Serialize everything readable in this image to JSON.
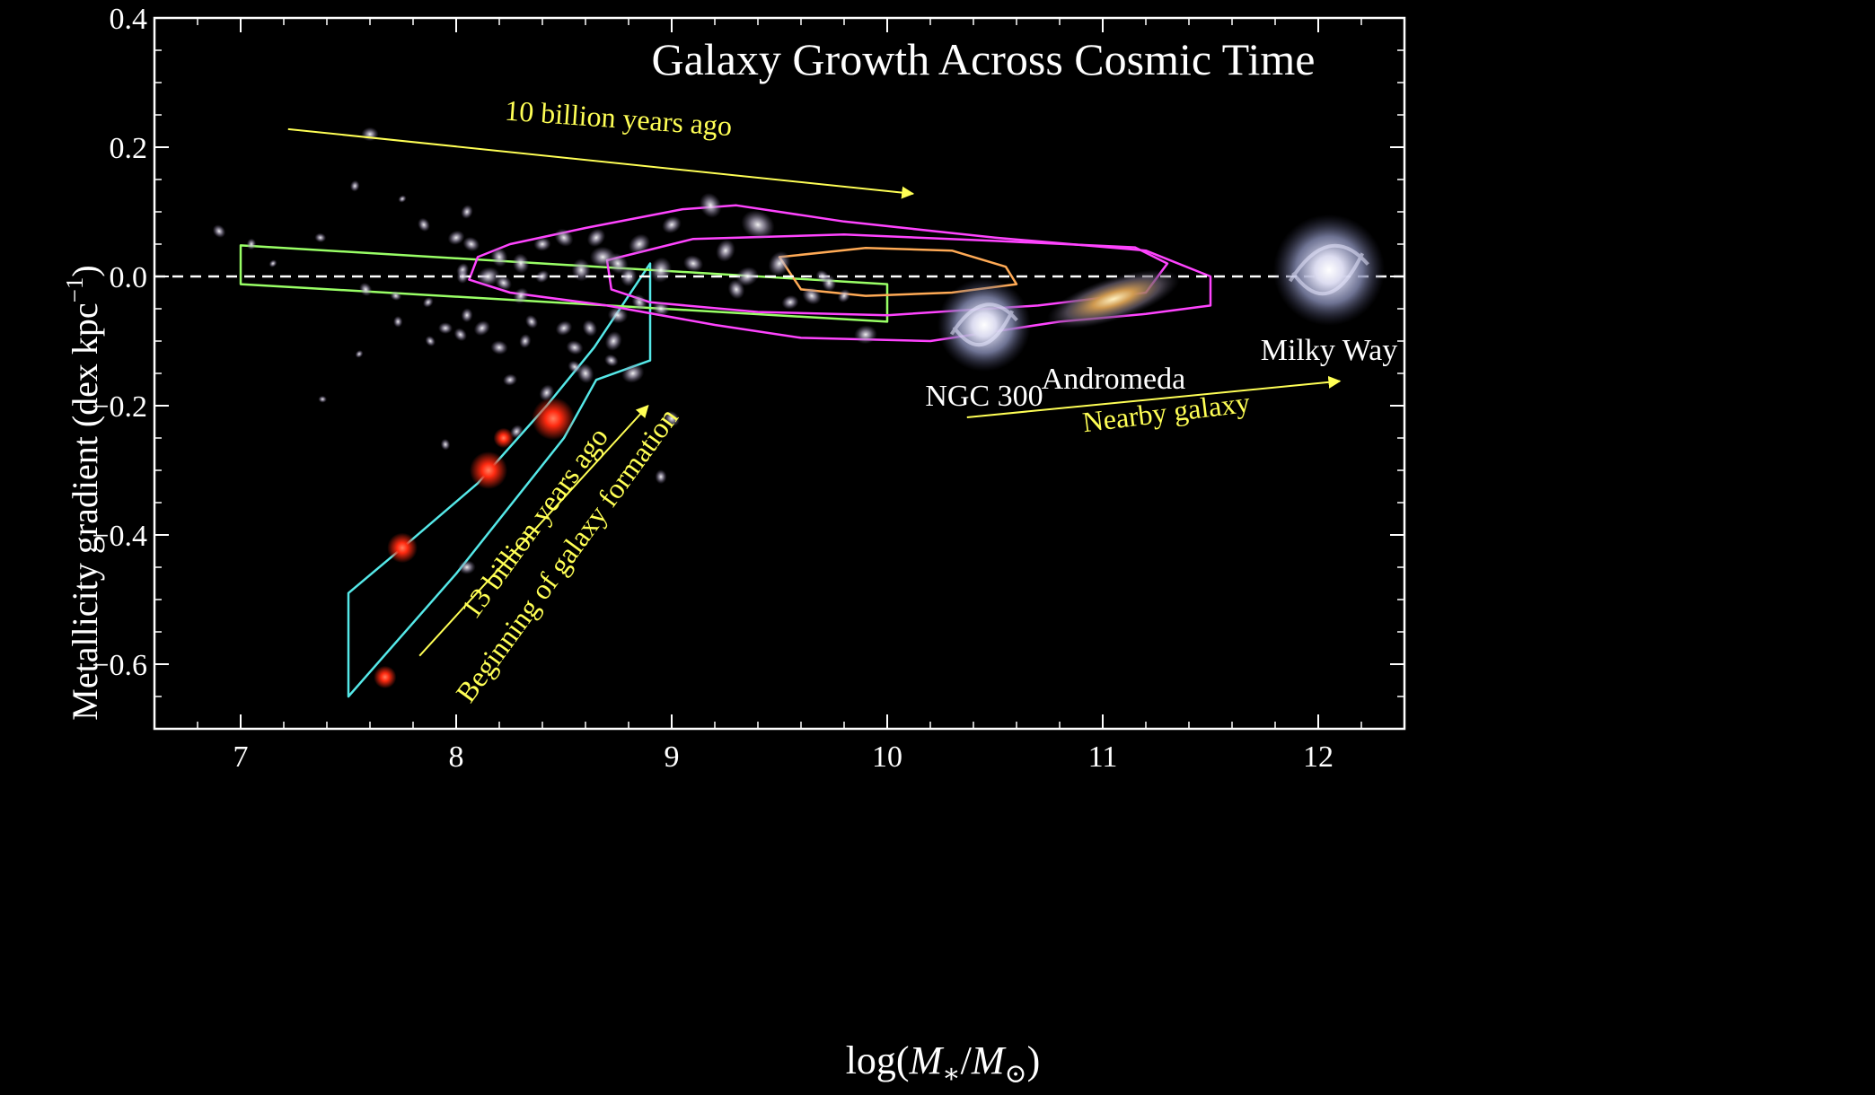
{
  "chart_data": {
    "type": "scatter",
    "title": "Galaxy Growth Across Cosmic Time",
    "xlabel": {
      "pre": "log(",
      "m1": "M",
      "s1": "∗",
      "sep": "/",
      "m2": "M",
      "s2": "⊙",
      "post": ")"
    },
    "ylabel": {
      "text": "Metallicity gradient (dex kpc",
      "sup": "−1",
      "close": ")"
    },
    "xlim": [
      6.6,
      12.4
    ],
    "ylim": [
      -0.7,
      0.4
    ],
    "xticks": [
      7,
      8,
      9,
      10,
      11,
      12
    ],
    "xticklabels": [
      "7",
      "8",
      "9",
      "10",
      "11",
      "12"
    ],
    "yticks": [
      -0.6,
      -0.4,
      -0.2,
      0.0,
      0.2,
      0.4
    ],
    "yticklabels": [
      "−0.6",
      "−0.4",
      "−0.2",
      "0.0",
      "0.2",
      "0.4"
    ],
    "grid": false,
    "zero_line": {
      "y": 0.0,
      "style": "dashed",
      "color": "#ffffff"
    },
    "colors": {
      "background": "#000000",
      "axes": "#ffffff",
      "annotation": "#ffff55",
      "cyan": "#55e8e8",
      "green": "#99ff66",
      "magenta": "#ff44ff",
      "orange": "#ffaa55",
      "red_galaxy": "#ff2a10",
      "field_galaxy": "#c8c0d8"
    },
    "regions": [
      {
        "name": "cyan-region",
        "color": "#55e8e8",
        "points": [
          [
            7.5,
            -0.49
          ],
          [
            7.75,
            -0.42
          ],
          [
            8.1,
            -0.32
          ],
          [
            8.42,
            -0.2
          ],
          [
            8.64,
            -0.11
          ],
          [
            8.9,
            0.02
          ],
          [
            8.9,
            -0.13
          ],
          [
            8.65,
            -0.16
          ],
          [
            8.5,
            -0.25
          ],
          [
            8.0,
            -0.46
          ],
          [
            7.5,
            -0.65
          ]
        ]
      },
      {
        "name": "green-region",
        "color": "#99ff66",
        "points": [
          [
            7.0,
            0.048
          ],
          [
            10.0,
            -0.012
          ],
          [
            10.0,
            -0.07
          ],
          [
            7.0,
            -0.012
          ]
        ]
      },
      {
        "name": "magenta-contour",
        "color": "#ff44ff",
        "points": [
          [
            8.1,
            0.03
          ],
          [
            8.25,
            0.05
          ],
          [
            8.6,
            0.075
          ],
          [
            9.05,
            0.104
          ],
          [
            9.3,
            0.11
          ],
          [
            9.8,
            0.085
          ],
          [
            10.5,
            0.06
          ],
          [
            11.2,
            0.04
          ],
          [
            11.5,
            0.0
          ],
          [
            11.5,
            -0.045
          ],
          [
            11.2,
            -0.058
          ],
          [
            10.8,
            -0.07
          ],
          [
            10.2,
            -0.1
          ],
          [
            9.6,
            -0.095
          ],
          [
            9.2,
            -0.075
          ],
          [
            8.7,
            -0.045
          ],
          [
            8.25,
            -0.025
          ],
          [
            8.06,
            -0.005
          ],
          [
            8.1,
            0.03
          ]
        ]
      },
      {
        "name": "magenta-inner-contour",
        "color": "#ff44ff",
        "points": [
          [
            8.7,
            0.025
          ],
          [
            9.1,
            0.058
          ],
          [
            9.8,
            0.065
          ],
          [
            10.5,
            0.055
          ],
          [
            11.15,
            0.045
          ],
          [
            11.3,
            0.02
          ],
          [
            11.2,
            -0.025
          ],
          [
            10.7,
            -0.045
          ],
          [
            10.0,
            -0.06
          ],
          [
            9.4,
            -0.055
          ],
          [
            8.9,
            -0.04
          ],
          [
            8.72,
            -0.02
          ],
          [
            8.7,
            0.025
          ]
        ]
      },
      {
        "name": "orange-contour",
        "color": "#ffaa55",
        "points": [
          [
            9.5,
            0.03
          ],
          [
            9.9,
            0.044
          ],
          [
            10.3,
            0.04
          ],
          [
            10.55,
            0.015
          ],
          [
            10.6,
            -0.012
          ],
          [
            10.3,
            -0.025
          ],
          [
            9.9,
            -0.03
          ],
          [
            9.6,
            -0.02
          ],
          [
            9.5,
            0.03
          ]
        ]
      }
    ],
    "red_galaxies": [
      {
        "x": 7.67,
        "y": -0.62,
        "size": 9
      },
      {
        "x": 7.75,
        "y": -0.42,
        "size": 12
      },
      {
        "x": 8.15,
        "y": -0.3,
        "size": 15
      },
      {
        "x": 8.45,
        "y": -0.22,
        "size": 17
      },
      {
        "x": 8.22,
        "y": -0.25,
        "size": 8
      }
    ],
    "field_galaxies": [
      [
        7.6,
        0.22,
        6
      ],
      [
        6.9,
        0.07,
        5
      ],
      [
        7.05,
        0.05,
        4
      ],
      [
        7.15,
        0.02,
        3
      ],
      [
        7.37,
        0.06,
        4
      ],
      [
        7.58,
        -0.02,
        5
      ],
      [
        7.53,
        0.14,
        4
      ],
      [
        7.75,
        0.12,
        3
      ],
      [
        7.72,
        -0.03,
        4
      ],
      [
        7.85,
        0.08,
        5
      ],
      [
        8.05,
        0.1,
        5
      ],
      [
        8.0,
        0.06,
        6
      ],
      [
        8.07,
        0.05,
        6
      ],
      [
        8.2,
        0.03,
        7
      ],
      [
        8.03,
        0.01,
        5
      ],
      [
        8.15,
        0.0,
        8
      ],
      [
        8.22,
        -0.01,
        6
      ],
      [
        8.3,
        0.02,
        7
      ],
      [
        8.3,
        -0.03,
        6
      ],
      [
        8.4,
        0.05,
        6
      ],
      [
        8.5,
        0.06,
        7
      ],
      [
        8.58,
        0.01,
        8
      ],
      [
        8.65,
        0.06,
        7
      ],
      [
        8.68,
        0.03,
        9
      ],
      [
        8.75,
        0.02,
        8
      ],
      [
        8.8,
        0.0,
        7
      ],
      [
        8.85,
        0.05,
        8
      ],
      [
        8.75,
        -0.06,
        7
      ],
      [
        8.85,
        -0.04,
        6
      ],
      [
        8.95,
        0.01,
        9
      ],
      [
        9.0,
        0.08,
        7
      ],
      [
        9.1,
        0.02,
        7
      ],
      [
        9.18,
        0.11,
        9
      ],
      [
        9.25,
        0.04,
        8
      ],
      [
        9.35,
        0.0,
        8
      ],
      [
        9.4,
        0.08,
        12
      ],
      [
        9.3,
        -0.02,
        7
      ],
      [
        9.5,
        0.02,
        9
      ],
      [
        9.55,
        -0.04,
        6
      ],
      [
        9.65,
        -0.03,
        7
      ],
      [
        9.73,
        -0.01,
        6
      ],
      [
        9.8,
        -0.03,
        5
      ],
      [
        9.9,
        -0.09,
        8
      ],
      [
        9.7,
        0.0,
        5
      ],
      [
        7.73,
        -0.07,
        4
      ],
      [
        7.87,
        -0.04,
        4
      ],
      [
        7.95,
        -0.08,
        5
      ],
      [
        8.02,
        -0.09,
        5
      ],
      [
        8.05,
        -0.06,
        5
      ],
      [
        8.12,
        -0.08,
        6
      ],
      [
        8.2,
        -0.11,
        6
      ],
      [
        8.35,
        -0.07,
        5
      ],
      [
        8.32,
        -0.1,
        5
      ],
      [
        8.5,
        -0.08,
        6
      ],
      [
        8.55,
        -0.11,
        6
      ],
      [
        8.62,
        -0.08,
        6
      ],
      [
        8.73,
        -0.1,
        7
      ],
      [
        8.82,
        -0.15,
        8
      ],
      [
        8.72,
        -0.13,
        5
      ],
      [
        8.6,
        -0.15,
        7
      ],
      [
        8.42,
        -0.18,
        6
      ],
      [
        8.25,
        -0.16,
        5
      ],
      [
        8.55,
        -0.14,
        5
      ],
      [
        7.95,
        -0.26,
        4
      ],
      [
        8.28,
        -0.24,
        5
      ],
      [
        8.05,
        -0.45,
        6
      ],
      [
        9.0,
        -0.22,
        6
      ],
      [
        8.95,
        -0.31,
        5
      ],
      [
        7.55,
        -0.12,
        3
      ],
      [
        7.38,
        -0.19,
        3
      ],
      [
        7.88,
        -0.1,
        4
      ],
      [
        8.03,
        0.0,
        5
      ],
      [
        8.4,
        0.0,
        5
      ],
      [
        8.95,
        -0.05,
        6
      ]
    ],
    "reference_galaxies": [
      {
        "label": "NGC 300",
        "x": 10.45,
        "y": -0.075,
        "size": 52,
        "type": "spiral"
      },
      {
        "label": "Andromeda",
        "x": 11.05,
        "y": -0.035,
        "size": 62,
        "type": "edge"
      },
      {
        "label": "Milky Way",
        "x": 12.05,
        "y": 0.01,
        "size": 62,
        "type": "spiral"
      }
    ],
    "annotations": [
      {
        "text": "10 billion years ago",
        "x": 8.75,
        "y": 0.23,
        "rotation": 4,
        "arrow": [
          [
            7.22,
            0.228
          ],
          [
            10.12,
            0.128
          ]
        ]
      },
      {
        "text": "Nearby galaxy",
        "x": 11.3,
        "y": -0.225,
        "rotation": -7,
        "arrow": [
          [
            10.37,
            -0.218
          ],
          [
            12.1,
            -0.162
          ]
        ]
      },
      {
        "text": "13 billion years ago",
        "x": 8.4,
        "y": -0.39,
        "rotation": -54,
        "arrow": [
          [
            7.83,
            -0.587
          ],
          [
            8.89,
            -0.2
          ]
        ]
      },
      {
        "text": "Beginning of galaxy formation",
        "x": 8.55,
        "y": -0.44,
        "rotation": -54
      }
    ]
  }
}
